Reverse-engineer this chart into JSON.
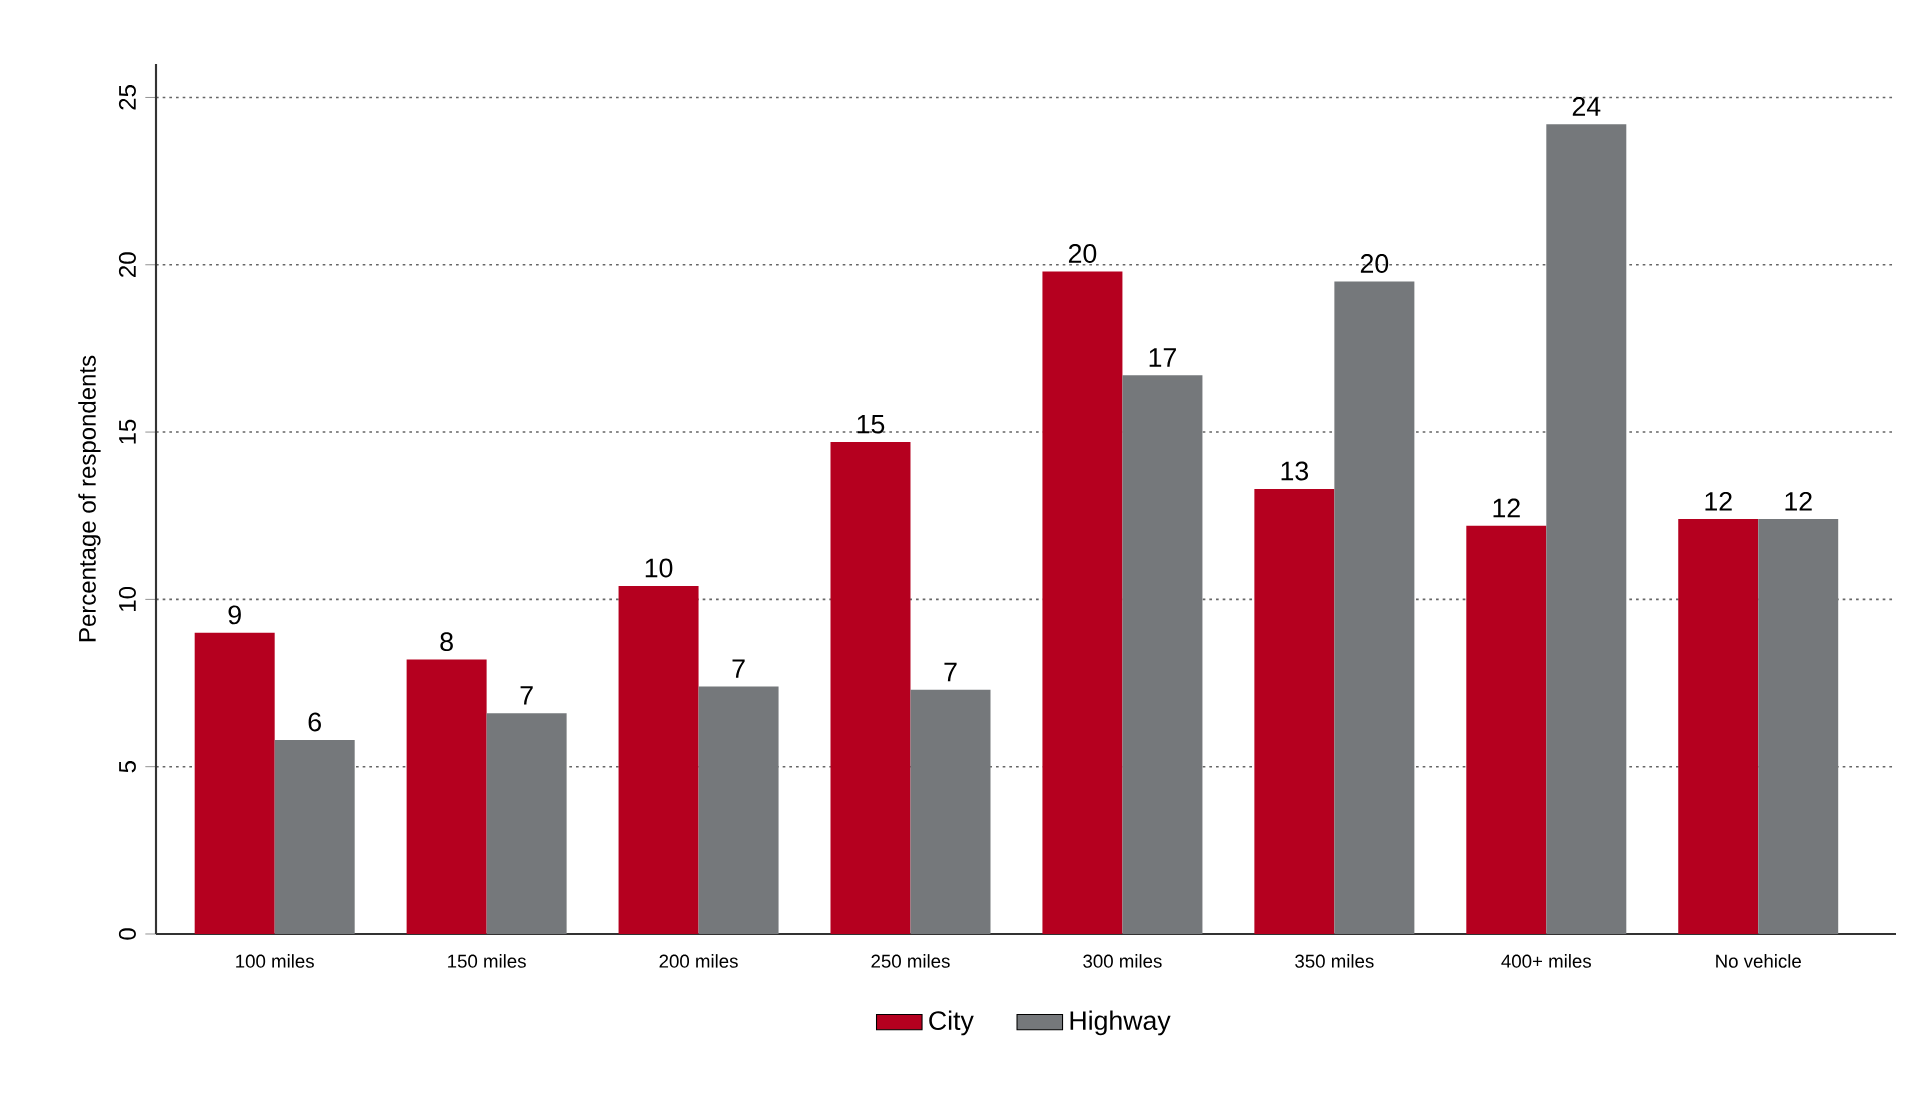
{
  "chart_data": {
    "type": "bar",
    "categories": [
      "100 miles",
      "150 miles",
      "200 miles",
      "250 miles",
      "300 miles",
      "350 miles",
      "400+ miles",
      "No vehicle"
    ],
    "series": [
      {
        "name": "City",
        "color": "#b5001f",
        "values": [
          9.0,
          8.2,
          10.4,
          14.7,
          19.8,
          13.3,
          12.2,
          12.4
        ],
        "value_labels": [
          "9",
          "8",
          "10",
          "15",
          "20",
          "13",
          "12",
          "12"
        ]
      },
      {
        "name": "Highway",
        "color": "#75787b",
        "values": [
          5.8,
          6.6,
          7.4,
          7.3,
          16.7,
          19.5,
          24.2,
          12.4
        ],
        "value_labels": [
          "6",
          "7",
          "7",
          "7",
          "17",
          "20",
          "24",
          "12"
        ]
      }
    ],
    "ylabel": "Percentage of respondents",
    "ylim": [
      0,
      26
    ],
    "yticks": [
      0,
      5,
      10,
      15,
      20,
      25
    ],
    "grid": "y",
    "legend": "bottom"
  }
}
